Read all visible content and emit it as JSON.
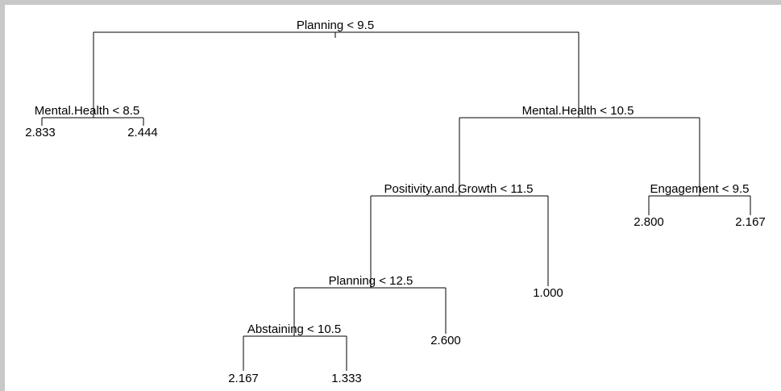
{
  "nodes": [
    {
      "label": "Planning < 9.5"
    },
    {
      "label": "Mental.Health < 8.5"
    },
    {
      "label": "2.833"
    },
    {
      "label": "2.444"
    },
    {
      "label": "Mental.Health < 10.5"
    },
    {
      "label": "Positivity.and.Growth < 11.5"
    },
    {
      "label": "Engagement < 9.5"
    },
    {
      "label": "2.800"
    },
    {
      "label": "2.167"
    },
    {
      "label": "Planning < 12.5"
    },
    {
      "label": "1.000"
    },
    {
      "label": "Abstaining < 10.5"
    },
    {
      "label": "2.600"
    },
    {
      "label": "2.167"
    },
    {
      "label": "1.333"
    }
  ]
}
